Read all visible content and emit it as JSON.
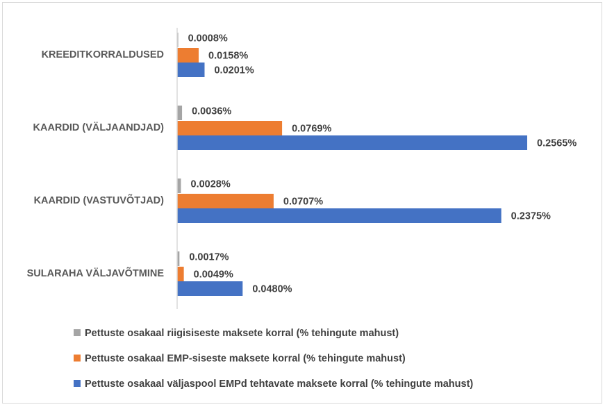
{
  "chart_data": {
    "type": "bar",
    "orientation": "horizontal",
    "title": "",
    "xlabel": "",
    "ylabel": "",
    "xlim": [
      0,
      0.2565
    ],
    "grid": false,
    "legend_position": "bottom",
    "categories": [
      "KREEDITKORRALDUSED",
      "KAARDID (VÄLJAANDJAD)",
      "KAARDID (VASTUVÕTJAD)",
      "SULARAHA VÄLJAVÕTMINE"
    ],
    "series": [
      {
        "name": "Pettuste osakaal riigisiseste maksete korral (% tehingute mahust)",
        "color": "#a5a5a5",
        "values": [
          0.0008,
          0.0036,
          0.0028,
          0.0017
        ],
        "labels": [
          "0.0008%",
          "0.0036%",
          "0.0028%",
          "0.0017%"
        ]
      },
      {
        "name": "Pettuste osakaal EMP-siseste maksete korral (% tehingute mahust)",
        "color": "#ed7d31",
        "values": [
          0.0158,
          0.0769,
          0.0707,
          0.0049
        ],
        "labels": [
          "0.0158%",
          "0.0769%",
          "0.0707%",
          "0.0049%"
        ]
      },
      {
        "name": "Pettuste osakaal väljaspool EMPd tehtavate maksete korral (% tehingute mahust)",
        "color": "#4472c4",
        "values": [
          0.0201,
          0.2565,
          0.2375,
          0.048
        ],
        "labels": [
          "0.0201%",
          "0.2565%",
          "0.2375%",
          "0.0480%"
        ]
      }
    ]
  }
}
